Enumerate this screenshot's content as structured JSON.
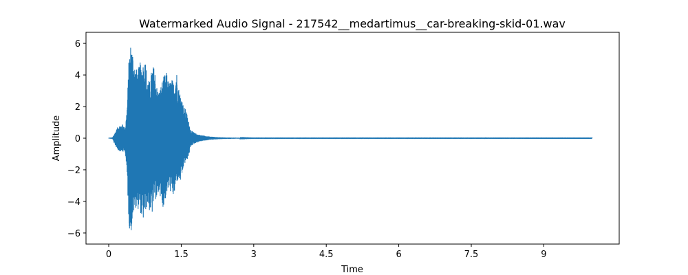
{
  "chart_data": {
    "type": "line",
    "title": "Watermarked Audio Signal - 217542__medartimus__car-breaking-skid-01.wav",
    "xlabel": "Time",
    "ylabel": "Amplitude",
    "xlim": [
      -0.47,
      10.56
    ],
    "ylim": [
      -6.7,
      6.7
    ],
    "xticks": [
      0,
      1.5,
      3,
      4.5,
      6,
      7.5,
      9
    ],
    "xtick_labels": [
      "0",
      "1.5",
      "3",
      "4.5",
      "6",
      "7.5",
      "9"
    ],
    "yticks": [
      -6,
      -4,
      -2,
      0,
      2,
      4,
      6
    ],
    "ytick_labels": [
      "−6",
      "−4",
      "−2",
      "0",
      "2",
      "4",
      "6"
    ],
    "grid": false,
    "legend": "none",
    "series": [
      {
        "color": "#1f77b4",
        "x_start": 0.0,
        "x_end": 10.0,
        "envelope": {
          "x": [
            0.0,
            0.08,
            0.12,
            0.2,
            0.3,
            0.34,
            0.38,
            0.42,
            0.46,
            0.5,
            0.55,
            0.6,
            0.65,
            0.7,
            0.75,
            0.8,
            0.85,
            0.9,
            0.95,
            1.0,
            1.05,
            1.1,
            1.15,
            1.2,
            1.25,
            1.3,
            1.35,
            1.4,
            1.45,
            1.5,
            1.55,
            1.6,
            1.65,
            1.7,
            1.75,
            1.8,
            1.9,
            2.0,
            2.1,
            2.2,
            2.3,
            2.4,
            2.5,
            2.6,
            2.7,
            2.72,
            3.0,
            10.0
          ],
          "upper": [
            0.02,
            0.05,
            0.3,
            0.8,
            0.9,
            0.6,
            2.0,
            5.2,
            6.1,
            5.5,
            4.5,
            4.3,
            4.8,
            4.7,
            5.2,
            3.8,
            3.6,
            4.6,
            4.5,
            3.2,
            3.0,
            3.6,
            4.0,
            4.2,
            3.5,
            3.8,
            3.5,
            4.4,
            3.2,
            2.7,
            2.0,
            1.8,
            1.1,
            0.5,
            0.4,
            0.3,
            0.2,
            0.15,
            0.1,
            0.08,
            0.06,
            0.05,
            0.04,
            0.035,
            0.03,
            0.01,
            0.005,
            0.005
          ],
          "lower": [
            -0.02,
            -0.05,
            -0.4,
            -0.8,
            -0.9,
            -0.8,
            -2.5,
            -5.6,
            -6.1,
            -5.0,
            -4.4,
            -4.5,
            -4.6,
            -5.4,
            -4.8,
            -4.2,
            -4.7,
            -4.8,
            -3.8,
            -4.0,
            -3.3,
            -4.5,
            -4.2,
            -3.5,
            -3.3,
            -3.5,
            -3.8,
            -2.8,
            -2.7,
            -2.8,
            -1.8,
            -1.5,
            -1.2,
            -0.5,
            -0.4,
            -0.3,
            -0.2,
            -0.15,
            -0.1,
            -0.08,
            -0.06,
            -0.05,
            -0.04,
            -0.035,
            -0.03,
            -0.01,
            -0.005,
            -0.005
          ]
        }
      }
    ]
  }
}
